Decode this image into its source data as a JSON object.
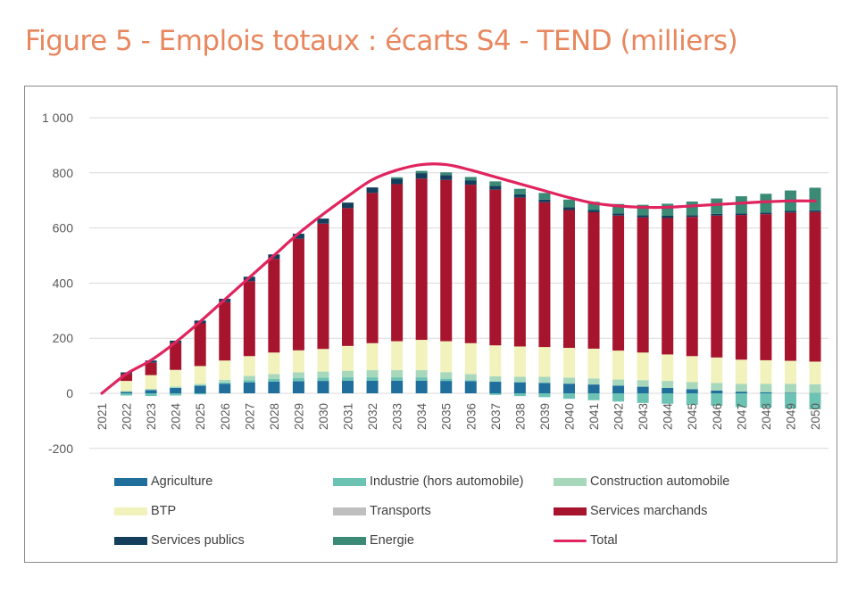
{
  "title": "Figure 5 - Emplois totaux : écarts S4 - TEND (milliers)",
  "chart_data": {
    "type": "bar",
    "stacked": true,
    "title": "Figure 5 - Emplois totaux : écarts S4 - TEND (milliers)",
    "xlabel": "",
    "ylabel": "",
    "ylim": [
      -200,
      1000
    ],
    "yticks": [
      -200,
      0,
      200,
      400,
      600,
      800,
      1000
    ],
    "ytick_labels": [
      "-200",
      "0",
      "200",
      "400",
      "600",
      "800",
      "1 000"
    ],
    "grid": true,
    "legend_position": "bottom",
    "categories": [
      "2021",
      "2022",
      "2023",
      "2024",
      "2025",
      "2026",
      "2027",
      "2028",
      "2029",
      "2030",
      "2031",
      "2032",
      "2033",
      "2034",
      "2035",
      "2036",
      "2037",
      "2038",
      "2039",
      "2040",
      "2041",
      "2042",
      "2043",
      "2044",
      "2045",
      "2046",
      "2047",
      "2048",
      "2049",
      "2050"
    ],
    "series": [
      {
        "name": "Agriculture",
        "color": "#1F6E9C",
        "values": [
          0,
          5,
          12,
          20,
          28,
          35,
          40,
          42,
          44,
          45,
          46,
          46,
          46,
          46,
          45,
          44,
          42,
          40,
          38,
          35,
          32,
          28,
          24,
          20,
          15,
          10,
          6,
          4,
          2,
          1
        ]
      },
      {
        "name": "Industrie (hors automobile)",
        "color": "#6CC3B4",
        "values": [
          0,
          -8,
          -10,
          -8,
          -4,
          4,
          8,
          10,
          12,
          12,
          12,
          12,
          12,
          12,
          8,
          4,
          -6,
          -10,
          -14,
          -20,
          -25,
          -30,
          -35,
          -38,
          -42,
          -45,
          -50,
          -52,
          -55,
          -58
        ]
      },
      {
        "name": "Construction automobile",
        "color": "#A8D8BC",
        "values": [
          0,
          3,
          4,
          5,
          6,
          10,
          15,
          18,
          20,
          22,
          24,
          26,
          26,
          26,
          24,
          22,
          20,
          20,
          22,
          22,
          22,
          22,
          24,
          25,
          26,
          28,
          28,
          30,
          32,
          32
        ]
      },
      {
        "name": "BTP",
        "color": "#F2F2BC",
        "values": [
          0,
          37,
          50,
          60,
          65,
          70,
          72,
          78,
          80,
          82,
          90,
          98,
          105,
          110,
          112,
          112,
          112,
          110,
          108,
          108,
          108,
          105,
          100,
          96,
          94,
          92,
          88,
          86,
          84,
          82
        ]
      },
      {
        "name": "Transports",
        "color": "#BFBFBF",
        "values": [
          0,
          0,
          0,
          0,
          0,
          0,
          0,
          0,
          0,
          0,
          0,
          0,
          0,
          0,
          0,
          0,
          0,
          0,
          0,
          0,
          0,
          0,
          0,
          0,
          0,
          0,
          0,
          0,
          0,
          0
        ]
      },
      {
        "name": "Services marchands",
        "color": "#A6142E",
        "values": [
          0,
          25,
          45,
          98,
          155,
          212,
          272,
          340,
          405,
          455,
          500,
          545,
          570,
          585,
          585,
          575,
          565,
          540,
          525,
          500,
          495,
          490,
          490,
          495,
          505,
          515,
          525,
          530,
          538,
          543
        ]
      },
      {
        "name": "Services publics",
        "color": "#133F5C",
        "values": [
          0,
          6,
          8,
          8,
          10,
          12,
          16,
          16,
          18,
          18,
          20,
          20,
          20,
          20,
          18,
          16,
          14,
          12,
          10,
          10,
          8,
          8,
          8,
          8,
          6,
          6,
          6,
          6,
          6,
          6
        ]
      },
      {
        "name": "Energie",
        "color": "#3A8A76",
        "values": [
          0,
          0,
          0,
          0,
          0,
          0,
          0,
          0,
          0,
          0,
          0,
          0,
          5,
          8,
          10,
          12,
          16,
          20,
          24,
          28,
          30,
          34,
          38,
          44,
          50,
          56,
          62,
          68,
          74,
          82
        ]
      }
    ],
    "line": {
      "name": "Total",
      "color": "#E0245E",
      "values": [
        0,
        70,
        120,
        185,
        260,
        340,
        420,
        500,
        580,
        650,
        715,
        775,
        810,
        830,
        830,
        810,
        785,
        760,
        735,
        710,
        690,
        680,
        675,
        675,
        680,
        685,
        690,
        695,
        698,
        698
      ]
    }
  },
  "legend": [
    {
      "label": "Agriculture",
      "color": "#1F6E9C",
      "kind": "swatch"
    },
    {
      "label": "Industrie (hors automobile)",
      "color": "#6CC3B4",
      "kind": "swatch"
    },
    {
      "label": "Construction automobile",
      "color": "#A8D8BC",
      "kind": "swatch"
    },
    {
      "label": "BTP",
      "color": "#F2F2BC",
      "kind": "swatch"
    },
    {
      "label": "Transports",
      "color": "#BFBFBF",
      "kind": "swatch"
    },
    {
      "label": "Services marchands",
      "color": "#A6142E",
      "kind": "swatch"
    },
    {
      "label": "Services publics",
      "color": "#133F5C",
      "kind": "swatch"
    },
    {
      "label": "Energie",
      "color": "#3A8A76",
      "kind": "swatch"
    },
    {
      "label": "Total",
      "color": "#E0245E",
      "kind": "line"
    }
  ]
}
